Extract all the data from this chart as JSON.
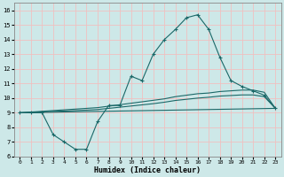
{
  "xlabel": "Humidex (Indice chaleur)",
  "background_color": "#cde8e8",
  "grid_color": "#f0c0c0",
  "line_color": "#1a6868",
  "xlim": [
    -0.5,
    23.5
  ],
  "ylim": [
    6.0,
    16.5
  ],
  "yticks": [
    6,
    7,
    8,
    9,
    10,
    11,
    12,
    13,
    14,
    15,
    16
  ],
  "xticks": [
    0,
    1,
    2,
    3,
    4,
    5,
    6,
    7,
    8,
    9,
    10,
    11,
    12,
    13,
    14,
    15,
    16,
    17,
    18,
    19,
    20,
    21,
    22,
    23
  ],
  "series_main": {
    "x": [
      0,
      1,
      2,
      3,
      4,
      5,
      6,
      7,
      8,
      9,
      10,
      11,
      12,
      13,
      14,
      15,
      16,
      17,
      18,
      19,
      20,
      21,
      22,
      23
    ],
    "y": [
      9.0,
      9.0,
      9.0,
      7.5,
      7.0,
      6.5,
      6.5,
      8.4,
      9.5,
      9.5,
      11.5,
      11.2,
      13.0,
      14.0,
      14.7,
      15.5,
      15.7,
      14.7,
      12.8,
      11.2,
      10.8,
      10.5,
      10.2,
      9.3
    ]
  },
  "series_upper": {
    "x": [
      0,
      1,
      2,
      3,
      4,
      5,
      6,
      7,
      8,
      9,
      10,
      11,
      12,
      13,
      14,
      15,
      16,
      17,
      18,
      19,
      20,
      21,
      22,
      23
    ],
    "y": [
      9.0,
      9.05,
      9.1,
      9.15,
      9.2,
      9.25,
      9.3,
      9.35,
      9.45,
      9.55,
      9.65,
      9.75,
      9.85,
      9.95,
      10.1,
      10.2,
      10.3,
      10.35,
      10.45,
      10.5,
      10.55,
      10.55,
      10.4,
      9.3
    ]
  },
  "series_mid": {
    "x": [
      0,
      1,
      2,
      3,
      4,
      5,
      6,
      7,
      8,
      9,
      10,
      11,
      12,
      13,
      14,
      15,
      16,
      17,
      18,
      19,
      20,
      21,
      22,
      23
    ],
    "y": [
      9.0,
      9.03,
      9.06,
      9.09,
      9.12,
      9.15,
      9.18,
      9.22,
      9.3,
      9.38,
      9.46,
      9.54,
      9.62,
      9.72,
      9.84,
      9.92,
      10.0,
      10.06,
      10.14,
      10.18,
      10.22,
      10.22,
      10.1,
      9.3
    ]
  },
  "series_lower": {
    "x": [
      0,
      23
    ],
    "y": [
      9.0,
      9.3
    ]
  }
}
